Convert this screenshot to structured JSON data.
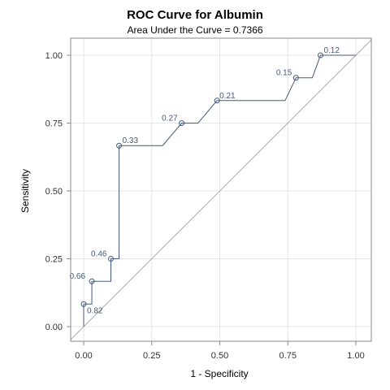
{
  "chart_data": {
    "type": "line",
    "title": "ROC Curve for Albumin",
    "subtitle": "Area Under the Curve = 0.7366",
    "xlabel": "1 - Specificity",
    "ylabel": "Sensitivity",
    "xlim": [
      0,
      1
    ],
    "ylim": [
      0,
      1
    ],
    "xticks": [
      "0.00",
      "0.25",
      "0.50",
      "0.75",
      "1.00"
    ],
    "yticks": [
      "0.00",
      "0.25",
      "0.50",
      "0.75",
      "1.00"
    ],
    "grid": true,
    "curve": {
      "x": [
        0.0,
        0.0,
        0.03,
        0.03,
        0.03,
        0.1,
        0.1,
        0.1,
        0.13,
        0.13,
        0.13,
        0.29,
        0.36,
        0.36,
        0.42,
        0.49,
        0.49,
        0.74,
        0.78,
        0.78,
        0.84,
        0.87,
        0.87,
        1.0
      ],
      "y": [
        0.0,
        0.083,
        0.083,
        0.167,
        0.167,
        0.167,
        0.25,
        0.25,
        0.25,
        0.667,
        0.667,
        0.667,
        0.75,
        0.75,
        0.75,
        0.833,
        0.833,
        0.833,
        0.917,
        0.917,
        0.917,
        1.0,
        1.0,
        1.0
      ]
    },
    "labeled_points": [
      {
        "x": 0.0,
        "y": 0.083,
        "label": "0.82"
      },
      {
        "x": 0.03,
        "y": 0.167,
        "label": "0.66"
      },
      {
        "x": 0.1,
        "y": 0.25,
        "label": "0.46"
      },
      {
        "x": 0.13,
        "y": 0.667,
        "label": "0.33"
      },
      {
        "x": 0.36,
        "y": 0.75,
        "label": "0.27"
      },
      {
        "x": 0.49,
        "y": 0.833,
        "label": "0.21"
      },
      {
        "x": 0.78,
        "y": 0.917,
        "label": "0.15"
      },
      {
        "x": 0.87,
        "y": 1.0,
        "label": "0.12"
      }
    ],
    "reference_line": {
      "x": [
        0,
        1
      ],
      "y": [
        0,
        1
      ]
    },
    "colors": {
      "curve": "#445a7a",
      "reference": "#aaaaaa",
      "grid": "#e6e6e6",
      "frame": "#888888"
    }
  }
}
